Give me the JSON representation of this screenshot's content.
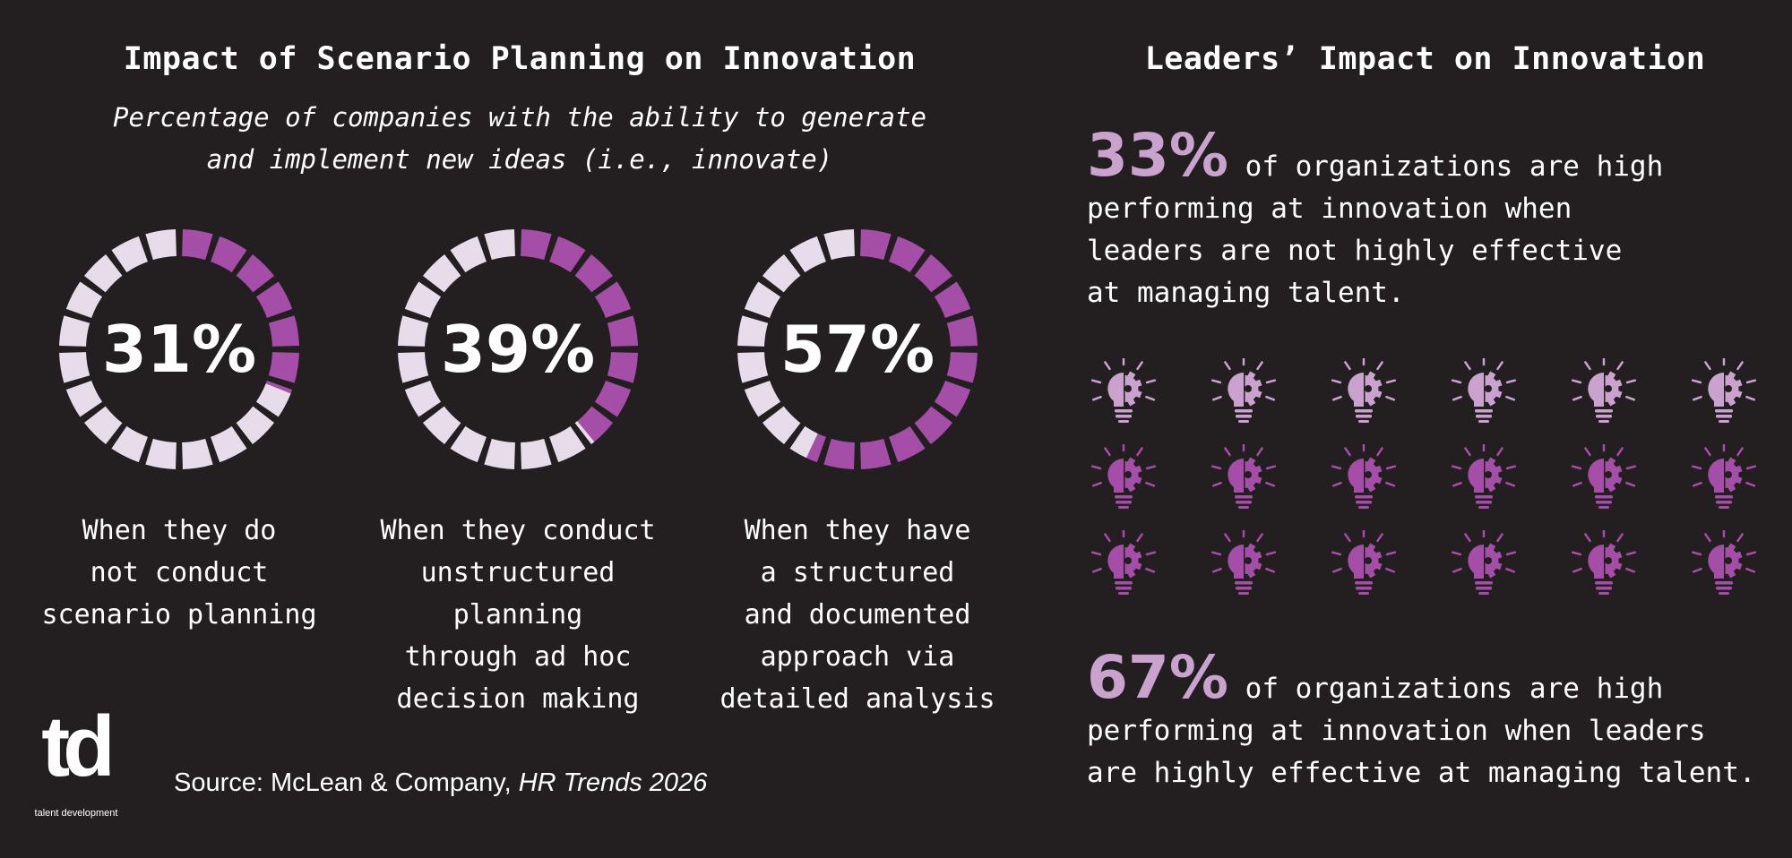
{
  "left_panel": {
    "title": "Impact of Scenario Planning on Innovation",
    "subtitle_lines": [
      "Percentage of companies with the ability to generate",
      "and implement new ideas (i.e., innovate)"
    ]
  },
  "right_panel": {
    "title": "Leaders’ Impact on Innovation",
    "stat_top": {
      "percent": "33%",
      "lines": [
        "of organizations are high",
        "performing at innovation when",
        "leaders are not highly effective",
        "at managing talent."
      ]
    },
    "stat_bottom": {
      "percent": "67%",
      "lines": [
        "of organizations are high",
        "performing at innovation when leaders",
        "are highly effective at managing talent."
      ]
    },
    "icon_grid": {
      "icon": "lightbulb-gear-icon",
      "columns": 6,
      "rows": 3,
      "highlighted_fraction": 0.33
    }
  },
  "source": {
    "prefix": "Source: McLean & Company, ",
    "publication": "HR Trends 2026"
  },
  "logo": {
    "wordmark": "td",
    "tagline": "talent development"
  },
  "colors": {
    "background": "#231f20",
    "accent": "#a54ea7",
    "accent_light": "#c9a3ce",
    "track": "#e6dcea",
    "text": "#ffffff"
  },
  "chart_data": [
    {
      "type": "pie",
      "style": "segmented-donut",
      "value": 31,
      "label": "31%",
      "caption_lines": [
        "When they do",
        "not conduct",
        "scenario planning"
      ]
    },
    {
      "type": "pie",
      "style": "segmented-donut",
      "value": 39,
      "label": "39%",
      "caption_lines": [
        "When they conduct",
        "unstructured",
        "planning",
        "through ad hoc",
        "decision making"
      ]
    },
    {
      "type": "pie",
      "style": "segmented-donut",
      "value": 57,
      "label": "57%",
      "caption_lines": [
        "When they have",
        "a structured",
        "and documented",
        "approach via",
        "detailed analysis"
      ]
    }
  ]
}
